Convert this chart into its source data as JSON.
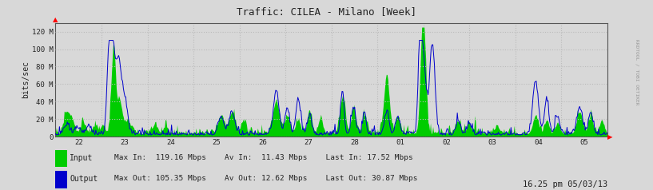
{
  "title": "Traffic: CILEA - Milano [Week]",
  "ylabel": "bits/sec",
  "xlabel_ticks": [
    "22",
    "23",
    "24",
    "25",
    "26",
    "27",
    "28",
    "01",
    "02",
    "03",
    "04",
    "05"
  ],
  "yticks": [
    0,
    20,
    40,
    60,
    80,
    100,
    120
  ],
  "ytick_labels": [
    "0",
    "20 M",
    "40 M",
    "60 M",
    "80 M",
    "100 M",
    "120 M"
  ],
  "ymax": 130,
  "bg_color": "#d8d8d8",
  "plot_bg_color": "#d8d8d8",
  "grid_color": "#bbbbbb",
  "input_color": "#00cc00",
  "output_color": "#0000cc",
  "axis_color": "#333333",
  "legend_input": "Input",
  "legend_output": "Output",
  "stats_line1": "Max In:  119.16 Mbps    Av In:  11.43 Mbps    Last In: 17.52 Mbps",
  "stats_line2": "Max Out: 105.35 Mbps    Av Out: 12.62 Mbps    Last Out: 30.87 Mbps",
  "timestamp": "16.25 pm 05/03/13",
  "watermark": "RRDTOOL / TOBI OETIKER",
  "n_points": 700,
  "seed": 42
}
